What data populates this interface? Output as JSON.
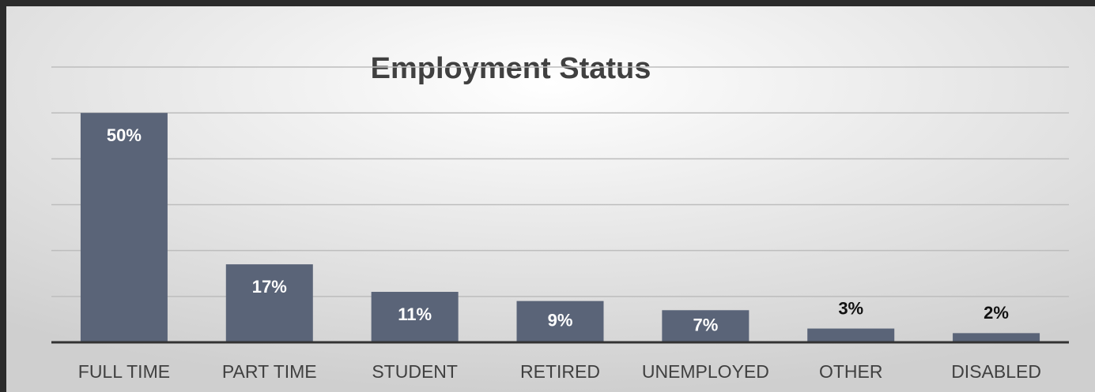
{
  "chart_data": {
    "type": "bar",
    "title": "Employment Status",
    "categories": [
      "FULL TIME",
      "PART TIME",
      "STUDENT",
      "RETIRED",
      "UNEMPLOYED",
      "OTHER",
      "DISABLED"
    ],
    "values": [
      50,
      17,
      11,
      9,
      7,
      3,
      2
    ],
    "value_labels": [
      "50%",
      "17%",
      "11%",
      "9%",
      "7%",
      "3%",
      "2%"
    ],
    "color": "#5a6478",
    "ylim": [
      0,
      60
    ],
    "yticks": [
      0,
      10,
      20,
      30,
      40,
      50,
      60
    ],
    "grid": true
  }
}
